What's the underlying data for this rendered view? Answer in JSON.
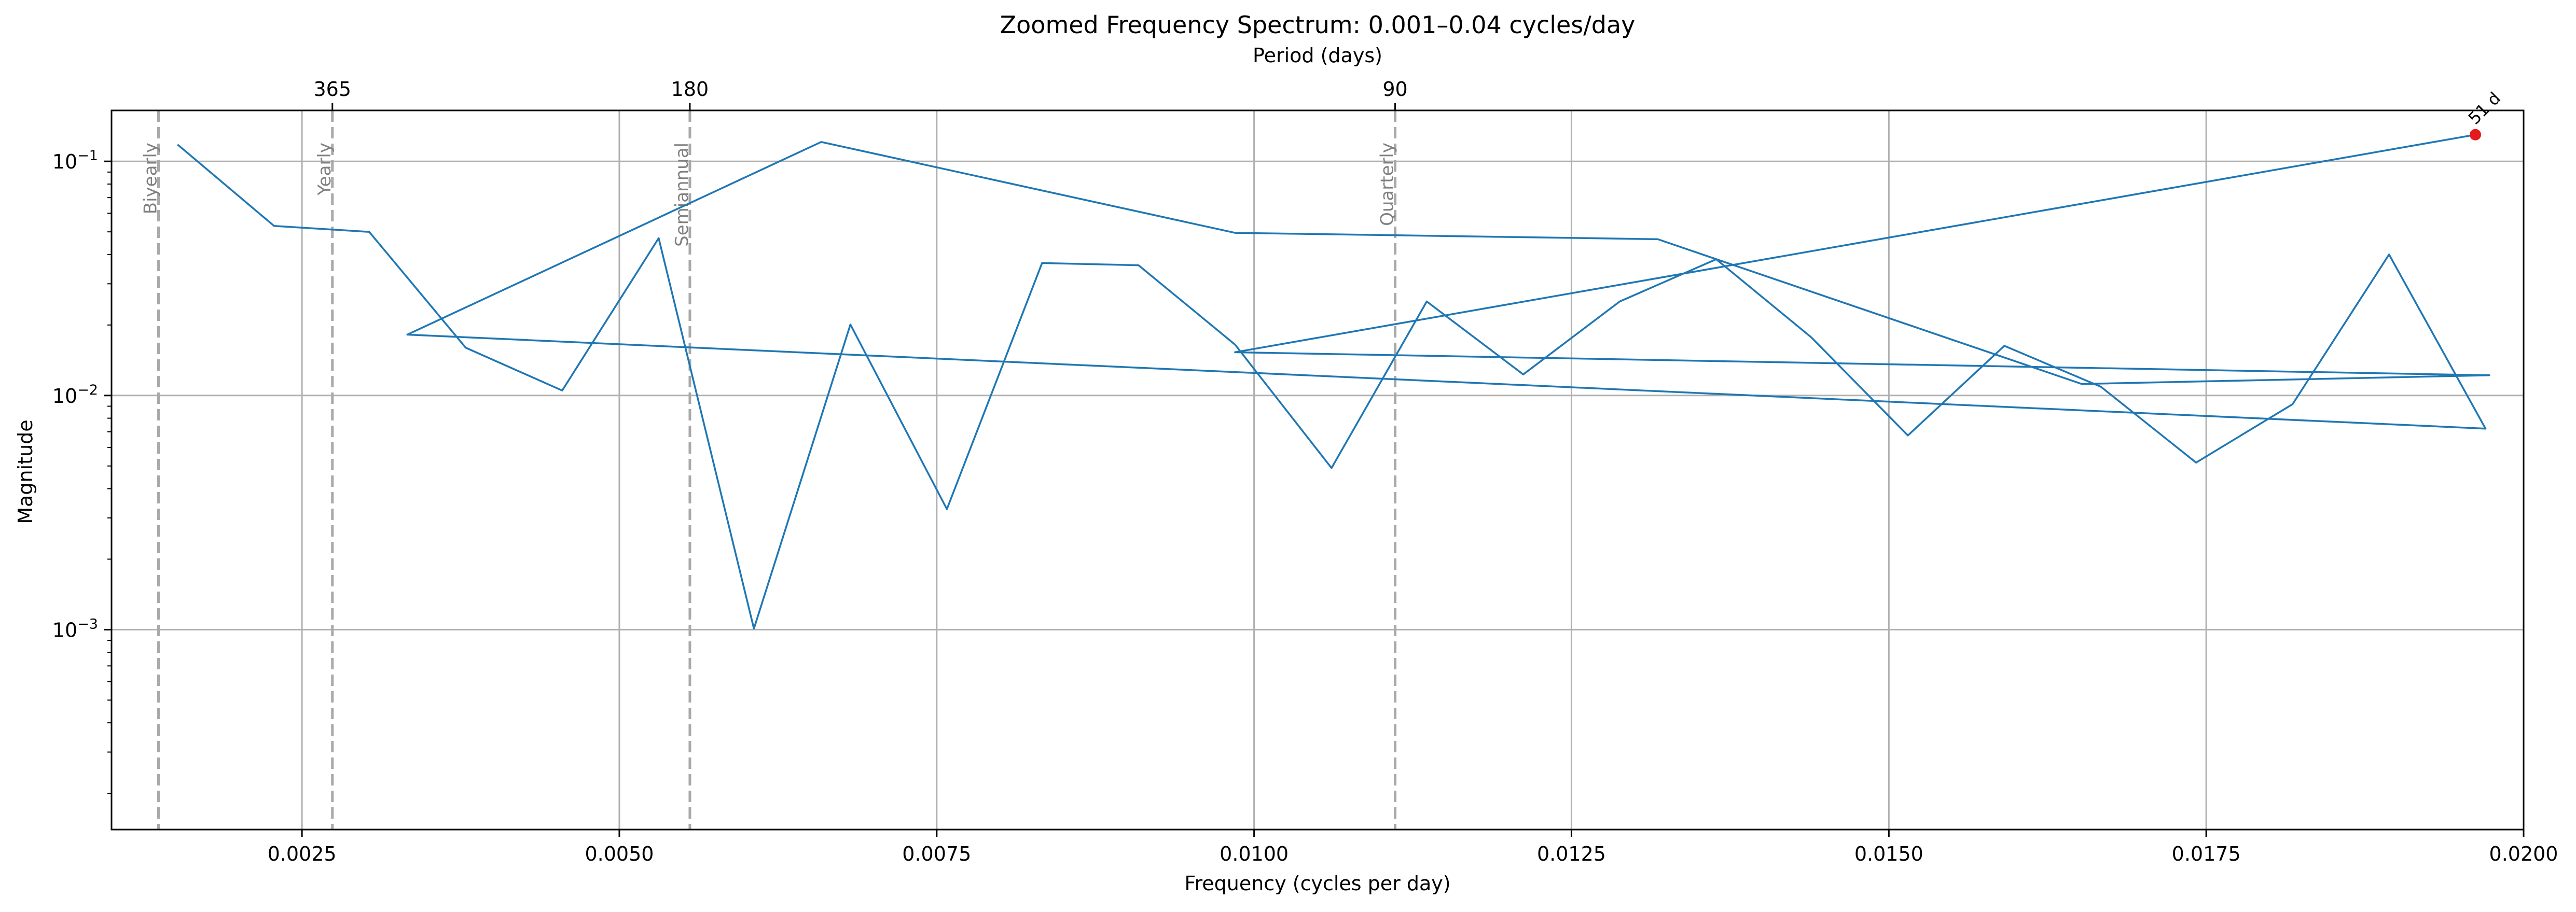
{
  "chart_data": {
    "type": "line",
    "title": "Zoomed Frequency Spectrum: 0.001–0.04 cycles/day",
    "xlabel": "Frequency (cycles per day)",
    "ylabel": "Magnitude",
    "secondary_xlabel": "Period (days)",
    "xlim": [
      0.001,
      0.02
    ],
    "ylim": [
      0.00014,
      0.165
    ],
    "yscale": "log",
    "grid": true,
    "x_ticks": [
      {
        "value": 0.0025,
        "label": "0.0025"
      },
      {
        "value": 0.005,
        "label": "0.0050"
      },
      {
        "value": 0.0075,
        "label": "0.0075"
      },
      {
        "value": 0.01,
        "label": "0.0100"
      },
      {
        "value": 0.0125,
        "label": "0.0125"
      },
      {
        "value": 0.015,
        "label": "0.0150"
      },
      {
        "value": 0.0175,
        "label": "0.0175"
      },
      {
        "value": 0.02,
        "label": "0.0200"
      }
    ],
    "y_ticks": [
      {
        "value": 0.1,
        "base": "10",
        "exp": "−1"
      },
      {
        "value": 0.01,
        "base": "10",
        "exp": "−2"
      },
      {
        "value": 0.001,
        "base": "10",
        "exp": "−3"
      }
    ],
    "top_ticks": [
      {
        "freq": 0.0027397,
        "label": "365"
      },
      {
        "freq": 0.0055556,
        "label": "180"
      },
      {
        "freq": 0.0111111,
        "label": "90"
      }
    ],
    "reference_lines": [
      {
        "freq": 0.0013699,
        "label": "Biyearly"
      },
      {
        "freq": 0.0027397,
        "label": "Yearly"
      },
      {
        "freq": 0.0055556,
        "label": "Semiannual"
      },
      {
        "freq": 0.0111111,
        "label": "Quarterly"
      }
    ],
    "series": [
      {
        "color": "#1f77b4",
        "points": [
          [
            0.00152,
            0.118
          ],
          [
            0.00228,
            0.053
          ],
          [
            0.00303,
            0.05
          ],
          [
            0.00379,
            0.016
          ],
          [
            0.00455,
            0.0105
          ],
          [
            0.00531,
            0.047
          ],
          [
            0.00606,
            0.00101
          ],
          [
            0.00682,
            0.0201
          ],
          [
            0.00758,
            0.00327
          ],
          [
            0.00833,
            0.0368
          ],
          [
            0.00909,
            0.036
          ],
          [
            0.00985,
            0.0165
          ],
          [
            0.01061,
            0.0049
          ],
          [
            0.01136,
            0.0252
          ],
          [
            0.01212,
            0.0123
          ],
          [
            0.01288,
            0.0252
          ],
          [
            0.01364,
            0.0382
          ],
          [
            0.01439,
            0.0177
          ],
          [
            0.01515,
            0.00675
          ],
          [
            0.01591,
            0.0163
          ],
          [
            0.01667,
            0.0109
          ],
          [
            0.01742,
            0.00517
          ],
          [
            0.01818,
            0.00918
          ],
          [
            0.01894,
            0.04
          ],
          [
            0.0197,
            0.00722
          ],
          [
            0.00333,
            0.0182
          ],
          [
            0.00659,
            0.121
          ],
          [
            0.00985,
            0.0495
          ],
          [
            0.01318,
            0.0465
          ],
          [
            0.01652,
            0.0112
          ],
          [
            0.01973,
            0.0122
          ],
          [
            0.00985,
            0.0153
          ],
          [
            0.01962,
            0.13
          ]
        ]
      }
    ],
    "peak": {
      "x": 0.01962,
      "y": 0.13,
      "label": "51 d",
      "color": "#e41a1c"
    }
  }
}
